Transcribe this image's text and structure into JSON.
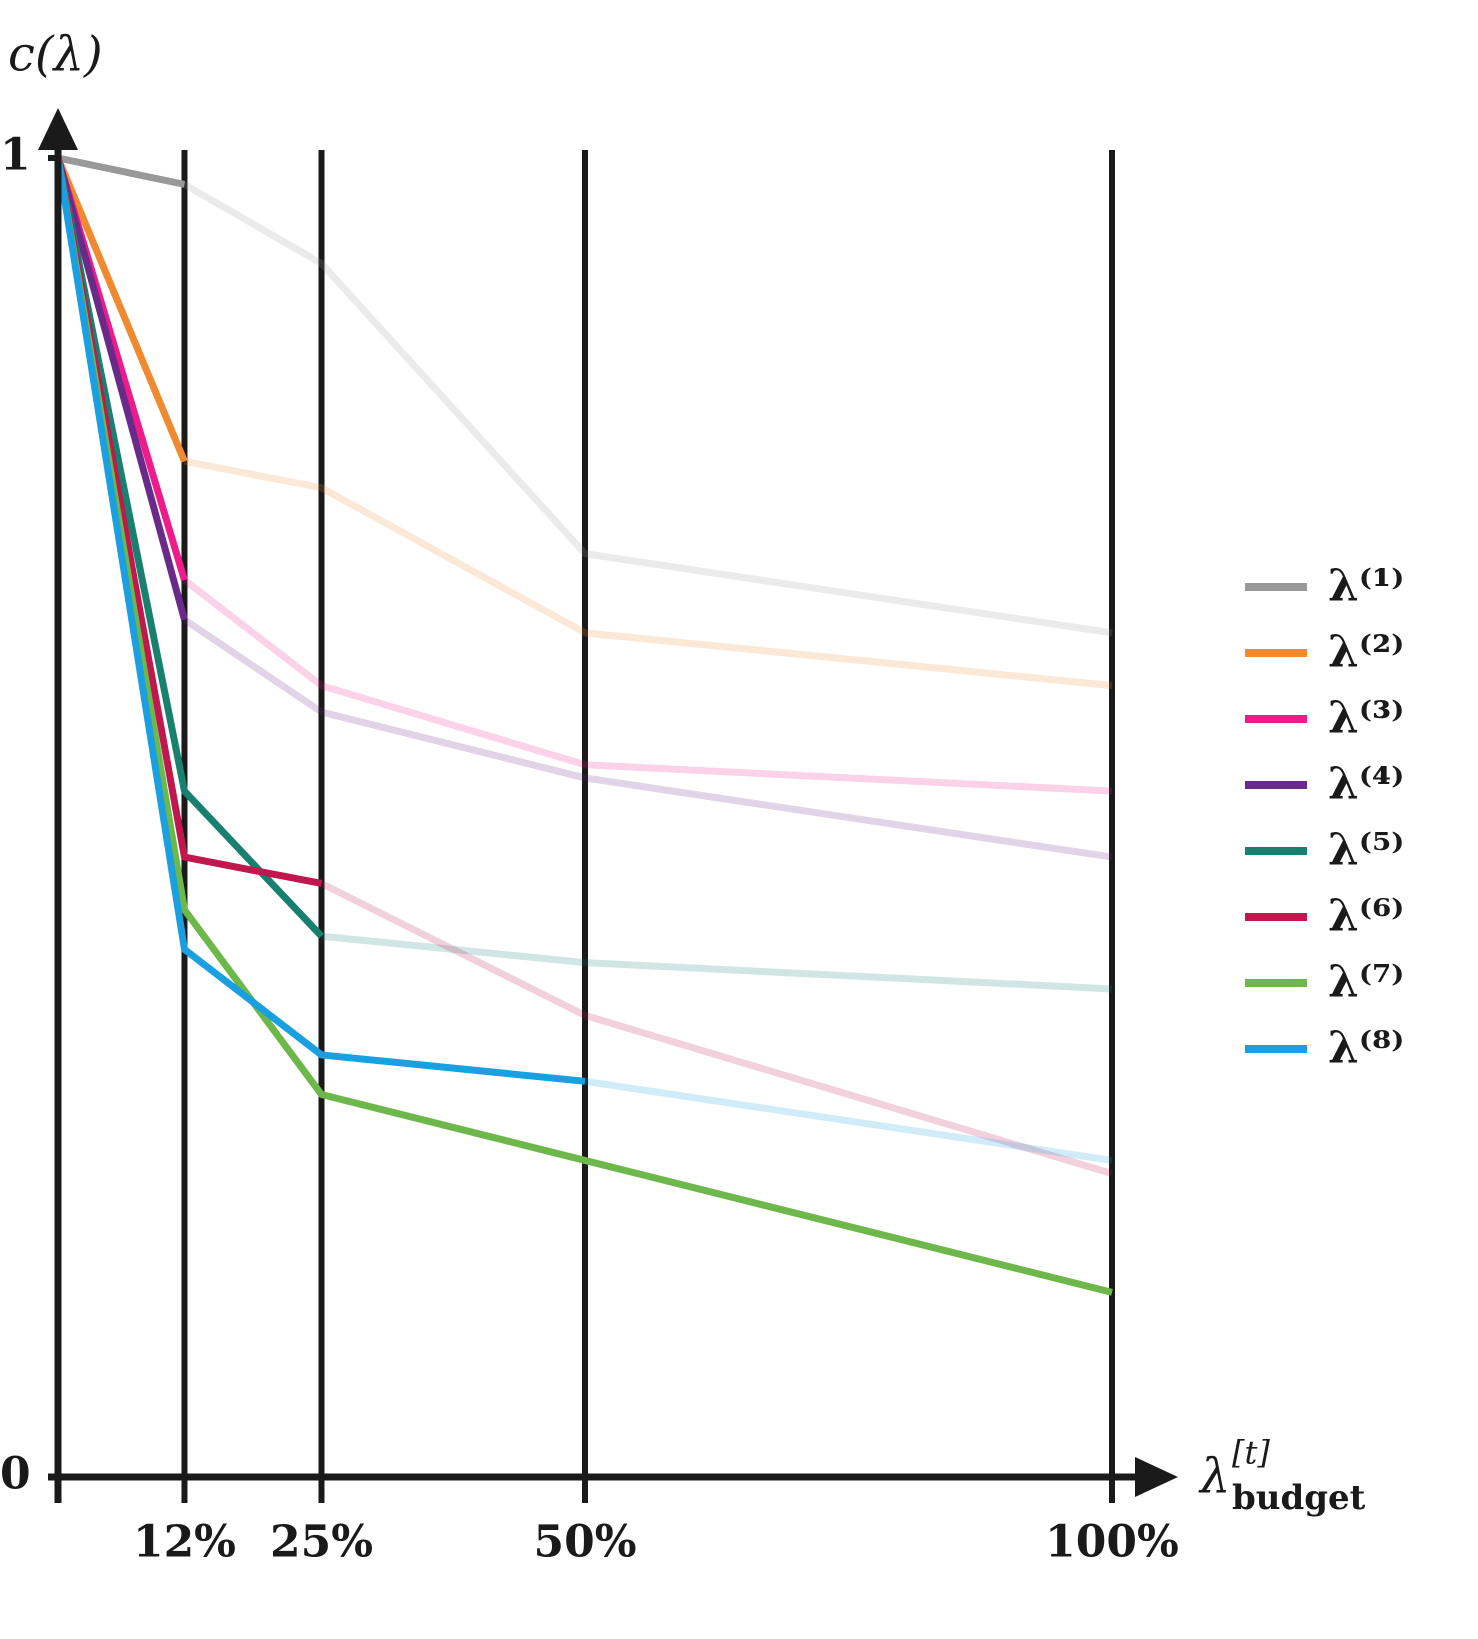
{
  "chart_data": {
    "type": "line",
    "y_label": "c(λ)",
    "x_label": {
      "base": "λ",
      "sub": "budget",
      "sup": "[t]"
    },
    "x": [
      0,
      12,
      25,
      50,
      100
    ],
    "xlim": [
      0,
      100
    ],
    "xticks": [
      {
        "value": 12,
        "label": "12%"
      },
      {
        "value": 25,
        "label": "25%"
      },
      {
        "value": 50,
        "label": "50%"
      },
      {
        "value": 100,
        "label": "100%"
      }
    ],
    "ylim": [
      0,
      1
    ],
    "yticks": [
      0,
      1
    ],
    "grid": true,
    "legend": "right",
    "series": [
      {
        "name": "λ⁽¹⁾",
        "color": "#999999",
        "solid_points": 2,
        "values": [
          1,
          0.98,
          0.92,
          0.7,
          0.64
        ]
      },
      {
        "name": "λ⁽²⁾",
        "color": "#f08a30",
        "solid_points": 2,
        "values": [
          1,
          0.77,
          0.75,
          0.64,
          0.6
        ]
      },
      {
        "name": "λ⁽³⁾",
        "color": "#ee1c8a",
        "solid_points": 2,
        "values": [
          1,
          0.68,
          0.6,
          0.54,
          0.52
        ]
      },
      {
        "name": "λ⁽⁴⁾",
        "color": "#6a2a8a",
        "solid_points": 2,
        "values": [
          1,
          0.65,
          0.58,
          0.53,
          0.47
        ]
      },
      {
        "name": "λ⁽⁵⁾",
        "color": "#17806e",
        "solid_points": 3,
        "values": [
          1,
          0.52,
          0.41,
          0.39,
          0.37
        ]
      },
      {
        "name": "λ⁽⁶⁾",
        "color": "#c0184e",
        "solid_points": 3,
        "values": [
          1,
          0.47,
          0.45,
          0.35,
          0.23
        ]
      },
      {
        "name": "λ⁽⁷⁾",
        "color": "#6cb84a",
        "solid_points": 5,
        "values": [
          1,
          0.43,
          0.29,
          0.24,
          0.14
        ]
      },
      {
        "name": "λ⁽⁸⁾",
        "color": "#1aa0e0",
        "solid_points": 4,
        "values": [
          1,
          0.4,
          0.32,
          0.3,
          0.24
        ]
      }
    ]
  }
}
